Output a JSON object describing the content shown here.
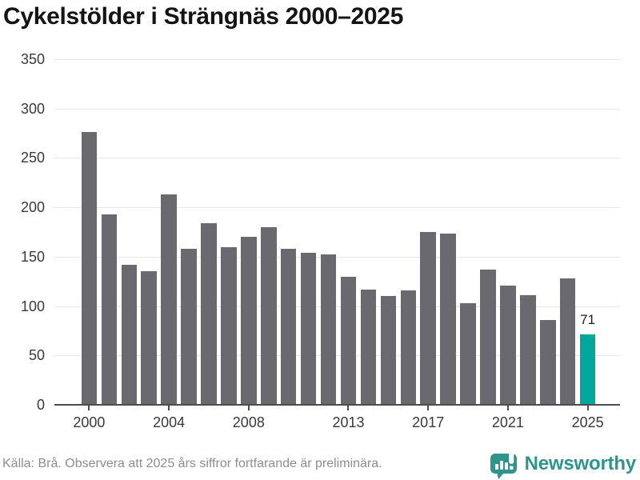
{
  "title": "Cykelstölder i Strängnäs 2000–2025",
  "footer": {
    "source": "Källa: Brå. Observera att 2025 års siffror fortfarande är preliminära.",
    "brand": "Newsworthy",
    "brand_icon": "speech-bubble-bar-chart"
  },
  "colors": {
    "bar": "#69696f",
    "highlight": "#00a79b",
    "brand_teal": "#2f948c",
    "gridline": "#e7e7e7",
    "axis": "#4d4d4d",
    "tick_label": "#3a3a3a",
    "title_text": "#141414",
    "source_text": "#8d8d8d"
  },
  "chart_data": {
    "type": "bar",
    "title": "Cykelstölder i Strängnäs 2000–2025",
    "xlabel": "",
    "ylabel": "",
    "categories": [
      2000,
      2001,
      2002,
      2003,
      2004,
      2005,
      2006,
      2007,
      2008,
      2009,
      2010,
      2011,
      2012,
      2013,
      2014,
      2015,
      2016,
      2017,
      2018,
      2019,
      2020,
      2021,
      2022,
      2023,
      2024,
      2025
    ],
    "values": [
      276,
      193,
      142,
      135,
      213,
      158,
      184,
      160,
      170,
      180,
      158,
      154,
      152,
      130,
      117,
      110,
      116,
      175,
      173,
      103,
      137,
      121,
      111,
      86,
      128,
      71
    ],
    "ylim": [
      0,
      350
    ],
    "yticks": [
      0,
      50,
      100,
      150,
      200,
      250,
      300,
      350
    ],
    "xticks": [
      2000,
      2004,
      2008,
      2013,
      2017,
      2021,
      2025
    ],
    "grid": true,
    "legend_position": "none",
    "highlight": {
      "category": 2025,
      "value": 71,
      "value_label": "71"
    }
  }
}
